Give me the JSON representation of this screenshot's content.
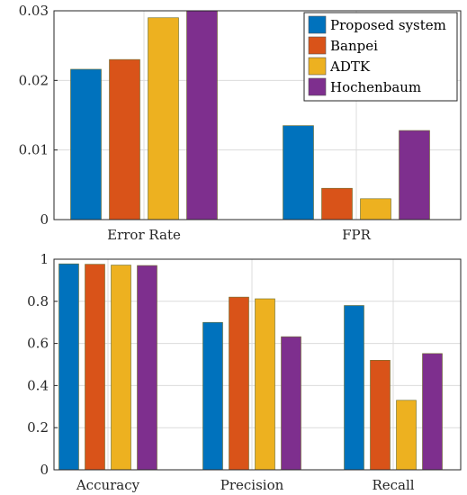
{
  "colors": {
    "Proposed system": "#0072BD",
    "Banpei": "#D95319",
    "ADTK": "#EDB120",
    "Hochenbaum": "#7E2F8E"
  },
  "chart_data": [
    {
      "type": "bar",
      "categories": [
        "Error Rate",
        "FPR"
      ],
      "series": [
        {
          "name": "Proposed system",
          "values": [
            0.0216,
            0.0135
          ]
        },
        {
          "name": "Banpei",
          "values": [
            0.023,
            0.0045
          ]
        },
        {
          "name": "ADTK",
          "values": [
            0.029,
            0.003
          ]
        },
        {
          "name": "Hochenbaum",
          "values": [
            0.03,
            0.0128
          ]
        }
      ],
      "ylim": [
        0,
        0.03
      ],
      "yticks": [
        "0",
        "0.01",
        "0.02",
        "0.03"
      ],
      "ytick_values": [
        0,
        0.01,
        0.02,
        0.03
      ],
      "grid": true,
      "legend": "top-right"
    },
    {
      "type": "bar",
      "categories": [
        "Accuracy",
        "Precision",
        "Recall"
      ],
      "series": [
        {
          "name": "Proposed system",
          "values": [
            0.978,
            0.7,
            0.78
          ]
        },
        {
          "name": "Banpei",
          "values": [
            0.976,
            0.82,
            0.52
          ]
        },
        {
          "name": "ADTK",
          "values": [
            0.972,
            0.812,
            0.33
          ]
        },
        {
          "name": "Hochenbaum",
          "values": [
            0.97,
            0.632,
            0.552
          ]
        }
      ],
      "ylim": [
        0,
        1
      ],
      "yticks": [
        "0",
        "0.2",
        "0.4",
        "0.6",
        "0.8",
        "1"
      ],
      "ytick_values": [
        0,
        0.2,
        0.4,
        0.6,
        0.8,
        1
      ],
      "grid": true,
      "legend": "none"
    }
  ]
}
